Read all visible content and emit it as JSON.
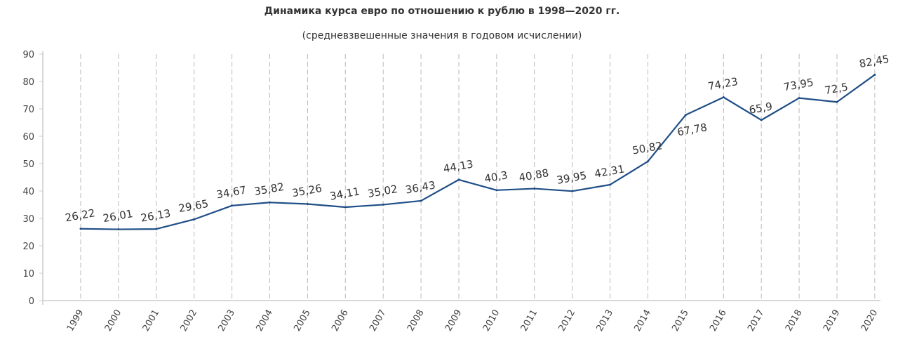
{
  "chart_data": {
    "type": "line",
    "title": "Динамика курса евро по отношению к рублю в 1998—2020 гг.",
    "subtitle": "(средневзвешенные значения в годовом исчислении)",
    "xlabel": "",
    "ylabel": "",
    "ylim": [
      0,
      90
    ],
    "yticks": [
      0,
      10,
      20,
      30,
      40,
      50,
      60,
      70,
      80,
      90
    ],
    "grid": "vertical dashed",
    "legend": "none",
    "categories": [
      "1999",
      "2000",
      "2001",
      "2002",
      "2003",
      "2004",
      "2005",
      "2006",
      "2007",
      "2008",
      "2009",
      "2010",
      "2011",
      "2012",
      "2013",
      "2014",
      "2015",
      "2016",
      "2017",
      "2018",
      "2019",
      "2020"
    ],
    "values": [
      26.22,
      26.01,
      26.13,
      29.65,
      34.67,
      35.82,
      35.26,
      34.11,
      35.02,
      36.43,
      44.13,
      40.3,
      40.88,
      39.95,
      42.31,
      50.82,
      67.78,
      74.23,
      65.9,
      73.95,
      72.5,
      82.45
    ],
    "data_labels": [
      "26,22",
      "26,01",
      "26,13",
      "29,65",
      "34,67",
      "35,82",
      "35,26",
      "34,11",
      "35,02",
      "36,43",
      "44,13",
      "40,3",
      "40,88",
      "39,95",
      "42,31",
      "50,82",
      "67,78",
      "74,23",
      "65,9",
      "73,95",
      "72,5",
      "82,45"
    ],
    "line_color": "#1f4e86"
  }
}
